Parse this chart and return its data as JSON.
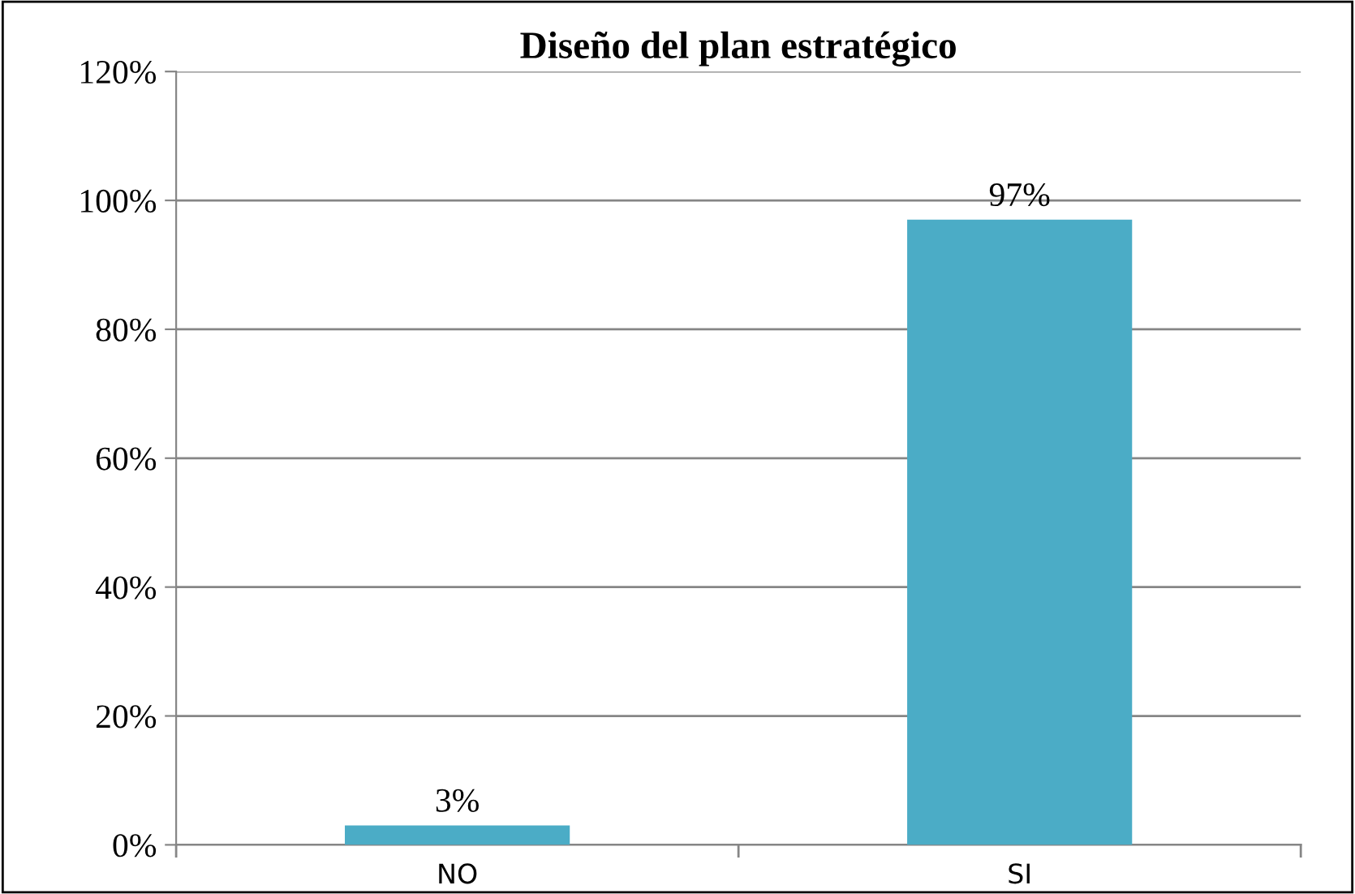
{
  "chart_data": {
    "type": "bar",
    "title": "Diseño del plan estratégico",
    "categories": [
      "NO",
      "SI"
    ],
    "values": [
      3,
      97
    ],
    "color": "#4bacc6",
    "ylim": [
      0,
      120
    ],
    "yticks": [
      {
        "value": 0,
        "label": "0%"
      },
      {
        "value": 20,
        "label": "20%"
      },
      {
        "value": 40,
        "label": "40%"
      },
      {
        "value": 60,
        "label": "60%"
      },
      {
        "value": 80,
        "label": "80%"
      },
      {
        "value": 100,
        "label": "100%"
      },
      {
        "value": 120,
        "label": "120%"
      }
    ],
    "value_labels": [
      "3%",
      "97%"
    ],
    "grid": "y",
    "legend": false
  }
}
